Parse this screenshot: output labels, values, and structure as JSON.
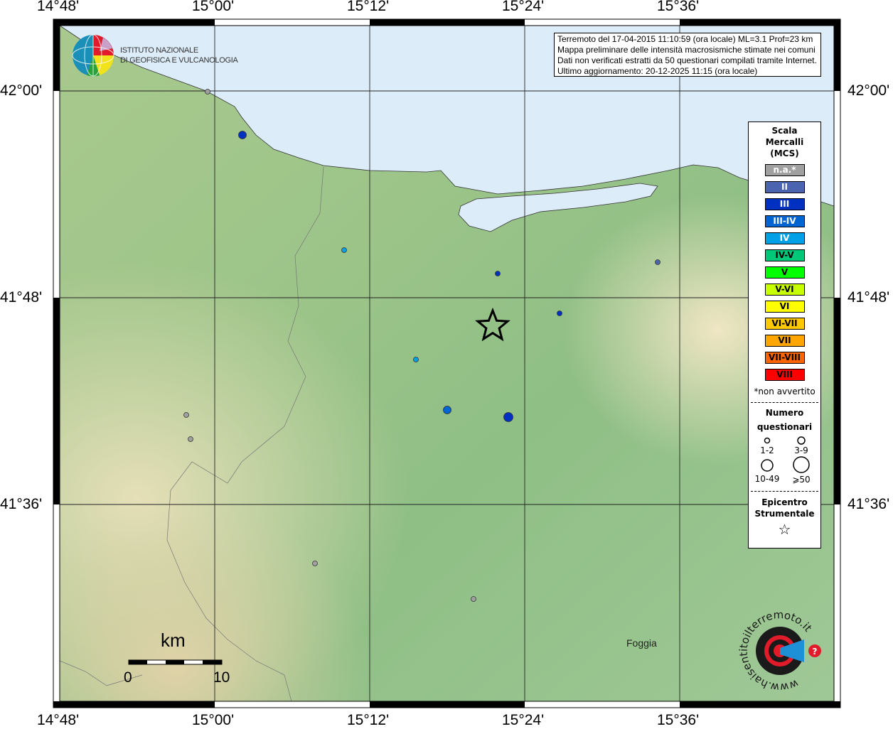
{
  "colors": {
    "sea": "#dcedf9",
    "na": "#a0a0a0",
    "II": "#4a64b0",
    "III": "#0030c0",
    "III-IV": "#0064d2",
    "IV": "#00a0e6",
    "IV-V": "#00c878",
    "V": "#00ff00",
    "V-VI": "#c8ff00",
    "VI": "#ffff00",
    "VI-VII": "#ffc800",
    "VII": "#ffa500",
    "VII-VIII": "#ff6400",
    "VIII": "#ff0000"
  },
  "axes": {
    "lon_ticks": [
      "14°48'",
      "15°00'",
      "15°12'",
      "15°24'",
      "15°36'"
    ],
    "lat_ticks": [
      "42°00'",
      "41°48'",
      "41°36'"
    ]
  },
  "info": {
    "line1": "Terremoto del 17-04-2015 11:10:59 (ora locale) ML=3.1 Prof=23 km",
    "line2": "Mappa preliminare delle intensità macrosismiche stimate nei comuni",
    "line3": "Dati non verificati estratti da 50 questionari compilati tramite Internet.",
    "line4": "Ultimo aggiornamento: 20-12-2025 11:15 (ora locale)"
  },
  "ingv_logo": {
    "line1": "ISTITUTO NAZIONALE",
    "line2": "DI GEOFISICA E VULCANOLOGIA"
  },
  "hsit_logo": {
    "text": "www.haisentitoilterremoto.it"
  },
  "legend": {
    "title1": "Scala",
    "title2": "Mercalli",
    "title3": "(MCS)",
    "scale": [
      {
        "label": "n.a.*",
        "key": "na",
        "text": "#ffffff"
      },
      {
        "label": "II",
        "key": "II",
        "text": "#ffffff"
      },
      {
        "label": "III",
        "key": "III",
        "text": "#ffffff"
      },
      {
        "label": "III-IV",
        "key": "III-IV",
        "text": "#ffffff"
      },
      {
        "label": "IV",
        "key": "IV",
        "text": "#ffffff"
      },
      {
        "label": "IV-V",
        "key": "IV-V",
        "text": "#000000"
      },
      {
        "label": "V",
        "key": "V",
        "text": "#000000"
      },
      {
        "label": "V-VI",
        "key": "V-VI",
        "text": "#000000"
      },
      {
        "label": "VI",
        "key": "VI",
        "text": "#000000"
      },
      {
        "label": "VI-VII",
        "key": "VI-VII",
        "text": "#000000"
      },
      {
        "label": "VII",
        "key": "VII",
        "text": "#000000"
      },
      {
        "label": "VII-VIII",
        "key": "VII-VIII",
        "text": "#000000"
      },
      {
        "label": "VIII",
        "key": "VIII",
        "text": "#000000"
      }
    ],
    "note": "*non avvertito",
    "count_title1": "Numero",
    "count_title2": "questionari",
    "counts": [
      "1-2",
      "3-9",
      "10-49",
      "⩾50"
    ],
    "epi_title1": "Epicentro",
    "epi_title2": "Strumentale"
  },
  "scalebar": {
    "unit": "km",
    "start": "0",
    "end": "10"
  },
  "places": [
    {
      "name": "Foggia"
    }
  ],
  "observations": [
    {
      "intensity": "na",
      "size": "1-2",
      "lon": "15°00'",
      "lat": "42°00'"
    },
    {
      "intensity": "III",
      "size": "3-9"
    },
    {
      "intensity": "IV",
      "size": "1-2"
    },
    {
      "intensity": "III",
      "size": "1-2"
    },
    {
      "intensity": "II",
      "size": "1-2"
    },
    {
      "intensity": "III",
      "size": "1-2"
    },
    {
      "intensity": "IV",
      "size": "1-2"
    },
    {
      "intensity": "III-IV",
      "size": "3-9"
    },
    {
      "intensity": "III",
      "size": "3-9"
    },
    {
      "intensity": "na",
      "size": "1-2"
    },
    {
      "intensity": "na",
      "size": "1-2"
    },
    {
      "intensity": "na",
      "size": "1-2"
    },
    {
      "intensity": "na",
      "size": "1-2"
    }
  ]
}
